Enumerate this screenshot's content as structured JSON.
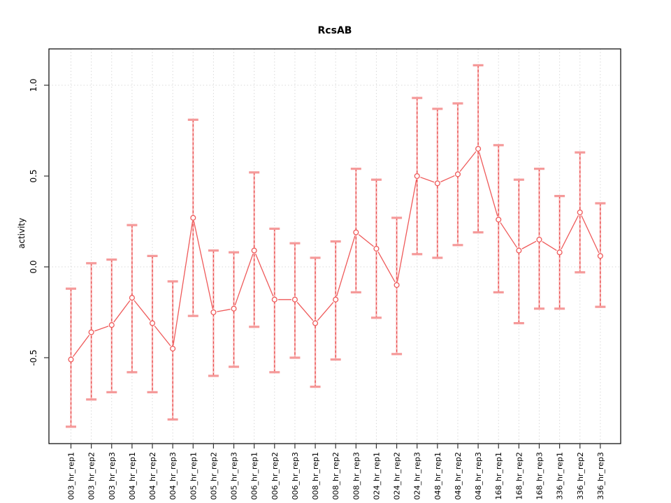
{
  "title": "RcsAB",
  "ylabel": "activity",
  "chart_data": {
    "type": "line",
    "title": "RcsAB",
    "xlabel": "",
    "ylabel": "activity",
    "legend_position": "none",
    "grid": "dotted",
    "ylim": [
      -0.95,
      1.15
    ],
    "ytick_values": [
      -0.5,
      0.0,
      0.5,
      1.0
    ],
    "ytick_labels": [
      "-0.5",
      "0.0",
      "0.5",
      "1.0"
    ],
    "grid_y_values": [
      0.0,
      1.0
    ],
    "categories": [
      "003_hr_rep1",
      "003_hr_rep2",
      "003_hr_rep3",
      "004_hr_rep1",
      "004_hr_rep2",
      "004_hr_rep3",
      "005_hr_rep1",
      "005_hr_rep2",
      "005_hr_rep3",
      "006_hr_rep1",
      "006_hr_rep2",
      "006_hr_rep3",
      "008_hr_rep1",
      "008_hr_rep2",
      "008_hr_rep3",
      "024_hr_rep1",
      "024_hr_rep2",
      "024_hr_rep3",
      "048_hr_rep1",
      "048_hr_rep2",
      "048_hr_rep3",
      "168_hr_rep1",
      "168_hr_rep2",
      "168_hr_rep3",
      "336_hr_rep1",
      "336_hr_rep2",
      "336_hr_rep3"
    ],
    "series": [
      {
        "name": "activity",
        "marker": "open-circle",
        "values": [
          -0.51,
          -0.36,
          -0.32,
          -0.17,
          -0.31,
          -0.45,
          0.27,
          -0.25,
          -0.23,
          0.09,
          -0.18,
          -0.18,
          -0.31,
          -0.18,
          0.19,
          0.1,
          -0.1,
          0.5,
          0.46,
          0.51,
          0.65,
          0.26,
          0.09,
          0.15,
          0.08,
          0.3,
          0.06
        ],
        "error_lower": [
          -0.88,
          -0.73,
          -0.69,
          -0.58,
          -0.69,
          -0.84,
          -0.27,
          -0.6,
          -0.55,
          -0.33,
          -0.58,
          -0.5,
          -0.66,
          -0.51,
          -0.14,
          -0.28,
          -0.48,
          0.07,
          0.05,
          0.12,
          0.19,
          -0.14,
          -0.31,
          -0.23,
          -0.23,
          -0.03,
          -0.22
        ],
        "error_upper": [
          -0.12,
          0.02,
          0.04,
          0.23,
          0.06,
          -0.08,
          0.81,
          0.09,
          0.08,
          0.52,
          0.21,
          0.13,
          0.05,
          0.14,
          0.54,
          0.48,
          0.27,
          0.93,
          0.87,
          0.9,
          1.11,
          0.67,
          0.48,
          0.54,
          0.39,
          0.63,
          0.35
        ]
      }
    ],
    "colors": {
      "line": "#ef5a5a",
      "marker_stroke": "#ef5a5a",
      "marker_fill": "#ffffff",
      "errorbar_shaft_base": "#f8b4b4",
      "errorbar_shaft_dash": "#e84b4b",
      "errorbar_cap": "#f59a9a",
      "gridline": "#d9d9d9",
      "axis_box": "#000000",
      "tick": "#333333",
      "text": "#000000"
    }
  }
}
